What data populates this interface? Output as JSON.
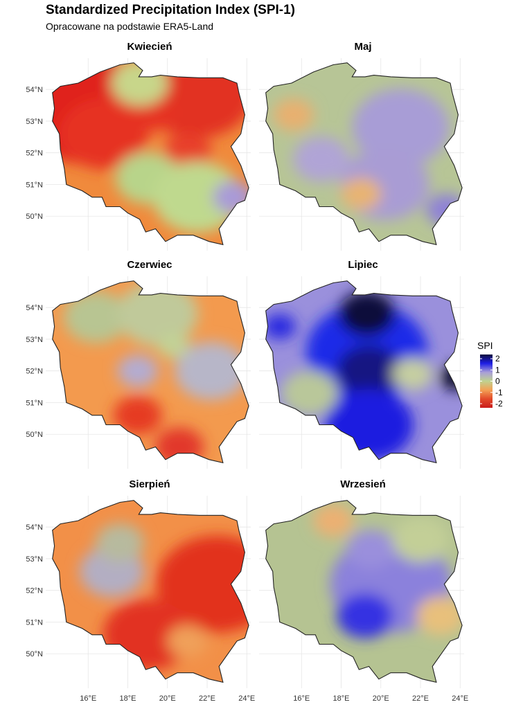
{
  "title": "Standardized Precipitation Index (SPI-1)",
  "subtitle": "Opracowane na podstawie ERA5-Land",
  "panels": [
    {
      "name": "Kwiecień",
      "base": "#f08a3c",
      "blobs": [
        {
          "lon": 15.8,
          "lat": 53.4,
          "r": 0.34,
          "c": "#e0201a"
        },
        {
          "lon": 16.8,
          "lat": 52.6,
          "r": 0.22,
          "c": "#e63020"
        },
        {
          "lon": 21.5,
          "lat": 53.9,
          "r": 0.28,
          "c": "#e23020"
        },
        {
          "lon": 19.3,
          "lat": 53.2,
          "r": 0.1,
          "c": "#e63322"
        },
        {
          "lon": 21.0,
          "lat": 52.0,
          "r": 0.12,
          "c": "#e8402a"
        },
        {
          "lon": 18.6,
          "lat": 54.2,
          "r": 0.14,
          "c": "#c8d68a"
        },
        {
          "lon": 19.0,
          "lat": 51.2,
          "r": 0.16,
          "c": "#b8d48a"
        },
        {
          "lon": 21.5,
          "lat": 50.6,
          "r": 0.22,
          "c": "#bfd98e"
        },
        {
          "lon": 23.3,
          "lat": 50.6,
          "r": 0.1,
          "c": "#a99ad8"
        }
      ]
    },
    {
      "name": "Maj",
      "base": "#b7c596",
      "blobs": [
        {
          "lon": 21.0,
          "lat": 52.8,
          "r": 0.24,
          "c": "#a89dd6"
        },
        {
          "lon": 20.2,
          "lat": 51.0,
          "r": 0.22,
          "c": "#a99cd4"
        },
        {
          "lon": 17.0,
          "lat": 51.8,
          "r": 0.14,
          "c": "#b0a4d6"
        },
        {
          "lon": 15.6,
          "lat": 53.2,
          "r": 0.1,
          "c": "#e8b070"
        },
        {
          "lon": 19.0,
          "lat": 50.7,
          "r": 0.1,
          "c": "#e8b472"
        },
        {
          "lon": 23.3,
          "lat": 50.2,
          "r": 0.1,
          "c": "#8f82d6"
        }
      ]
    },
    {
      "name": "Czerwiec",
      "base": "#f39a4e",
      "blobs": [
        {
          "lon": 16.4,
          "lat": 53.7,
          "r": 0.16,
          "c": "#b8c592"
        },
        {
          "lon": 19.5,
          "lat": 53.8,
          "r": 0.2,
          "c": "#c0c99a"
        },
        {
          "lon": 22.2,
          "lat": 52.0,
          "r": 0.18,
          "c": "#b7b6c8"
        },
        {
          "lon": 18.5,
          "lat": 52.0,
          "r": 0.1,
          "c": "#b4acd0"
        },
        {
          "lon": 20.3,
          "lat": 52.8,
          "r": 0.08,
          "c": "#c2d296"
        },
        {
          "lon": 18.5,
          "lat": 50.6,
          "r": 0.12,
          "c": "#e63a24"
        },
        {
          "lon": 20.6,
          "lat": 49.6,
          "r": 0.12,
          "c": "#e2382a"
        }
      ]
    },
    {
      "name": "Lipiec",
      "base": "#9a90dc",
      "blobs": [
        {
          "lon": 19.3,
          "lat": 52.6,
          "r": 0.3,
          "c": "#1a2ae8"
        },
        {
          "lon": 19.3,
          "lat": 53.8,
          "r": 0.14,
          "c": "#0c0a3a"
        },
        {
          "lon": 19.4,
          "lat": 52.0,
          "r": 0.16,
          "c": "#161682"
        },
        {
          "lon": 19.4,
          "lat": 50.3,
          "r": 0.22,
          "c": "#1d1ae0"
        },
        {
          "lon": 23.8,
          "lat": 51.8,
          "r": 0.08,
          "c": "#0a0a2a"
        },
        {
          "lon": 14.9,
          "lat": 53.4,
          "r": 0.08,
          "c": "#2a2ae0"
        },
        {
          "lon": 16.4,
          "lat": 51.3,
          "r": 0.14,
          "c": "#b9c79a"
        },
        {
          "lon": 21.6,
          "lat": 51.9,
          "r": 0.1,
          "c": "#c6cfa0"
        }
      ]
    },
    {
      "name": "Sierpień",
      "base": "#f29048",
      "blobs": [
        {
          "lon": 22.5,
          "lat": 52.2,
          "r": 0.3,
          "c": "#e2301e"
        },
        {
          "lon": 19.0,
          "lat": 50.6,
          "r": 0.22,
          "c": "#e23020"
        },
        {
          "lon": 17.2,
          "lat": 52.6,
          "r": 0.16,
          "c": "#b3aec2"
        },
        {
          "lon": 17.6,
          "lat": 53.5,
          "r": 0.12,
          "c": "#b7ba9e"
        },
        {
          "lon": 21.0,
          "lat": 50.4,
          "r": 0.1,
          "c": "#f0a05a"
        }
      ]
    },
    {
      "name": "Wrzesień",
      "base": "#b5c392",
      "blobs": [
        {
          "lon": 20.5,
          "lat": 52.2,
          "r": 0.3,
          "c": "#8b81dc"
        },
        {
          "lon": 19.2,
          "lat": 51.2,
          "r": 0.14,
          "c": "#3431e2"
        },
        {
          "lon": 19.5,
          "lat": 53.3,
          "r": 0.12,
          "c": "#9a8fdc"
        },
        {
          "lon": 17.6,
          "lat": 54.2,
          "r": 0.1,
          "c": "#ecb072"
        },
        {
          "lon": 23.0,
          "lat": 51.2,
          "r": 0.12,
          "c": "#e8c07c"
        },
        {
          "lon": 22.0,
          "lat": 53.6,
          "r": 0.14,
          "c": "#c3cf97"
        }
      ]
    }
  ],
  "lat_ticks": [
    "54°N",
    "53°N",
    "52°N",
    "51°N",
    "50°N"
  ],
  "lon_ticks": [
    "16°E",
    "18°E",
    "20°E",
    "22°E",
    "24°E"
  ],
  "legend": {
    "title": "SPI",
    "labels": [
      "2",
      "1",
      "0",
      "-1",
      "-2"
    ],
    "colors": [
      "#0b0a3c",
      "#1e1ee6",
      "#a89ed8",
      "#c0d290",
      "#f3a055",
      "#e24a2a",
      "#c91b1b"
    ]
  }
}
